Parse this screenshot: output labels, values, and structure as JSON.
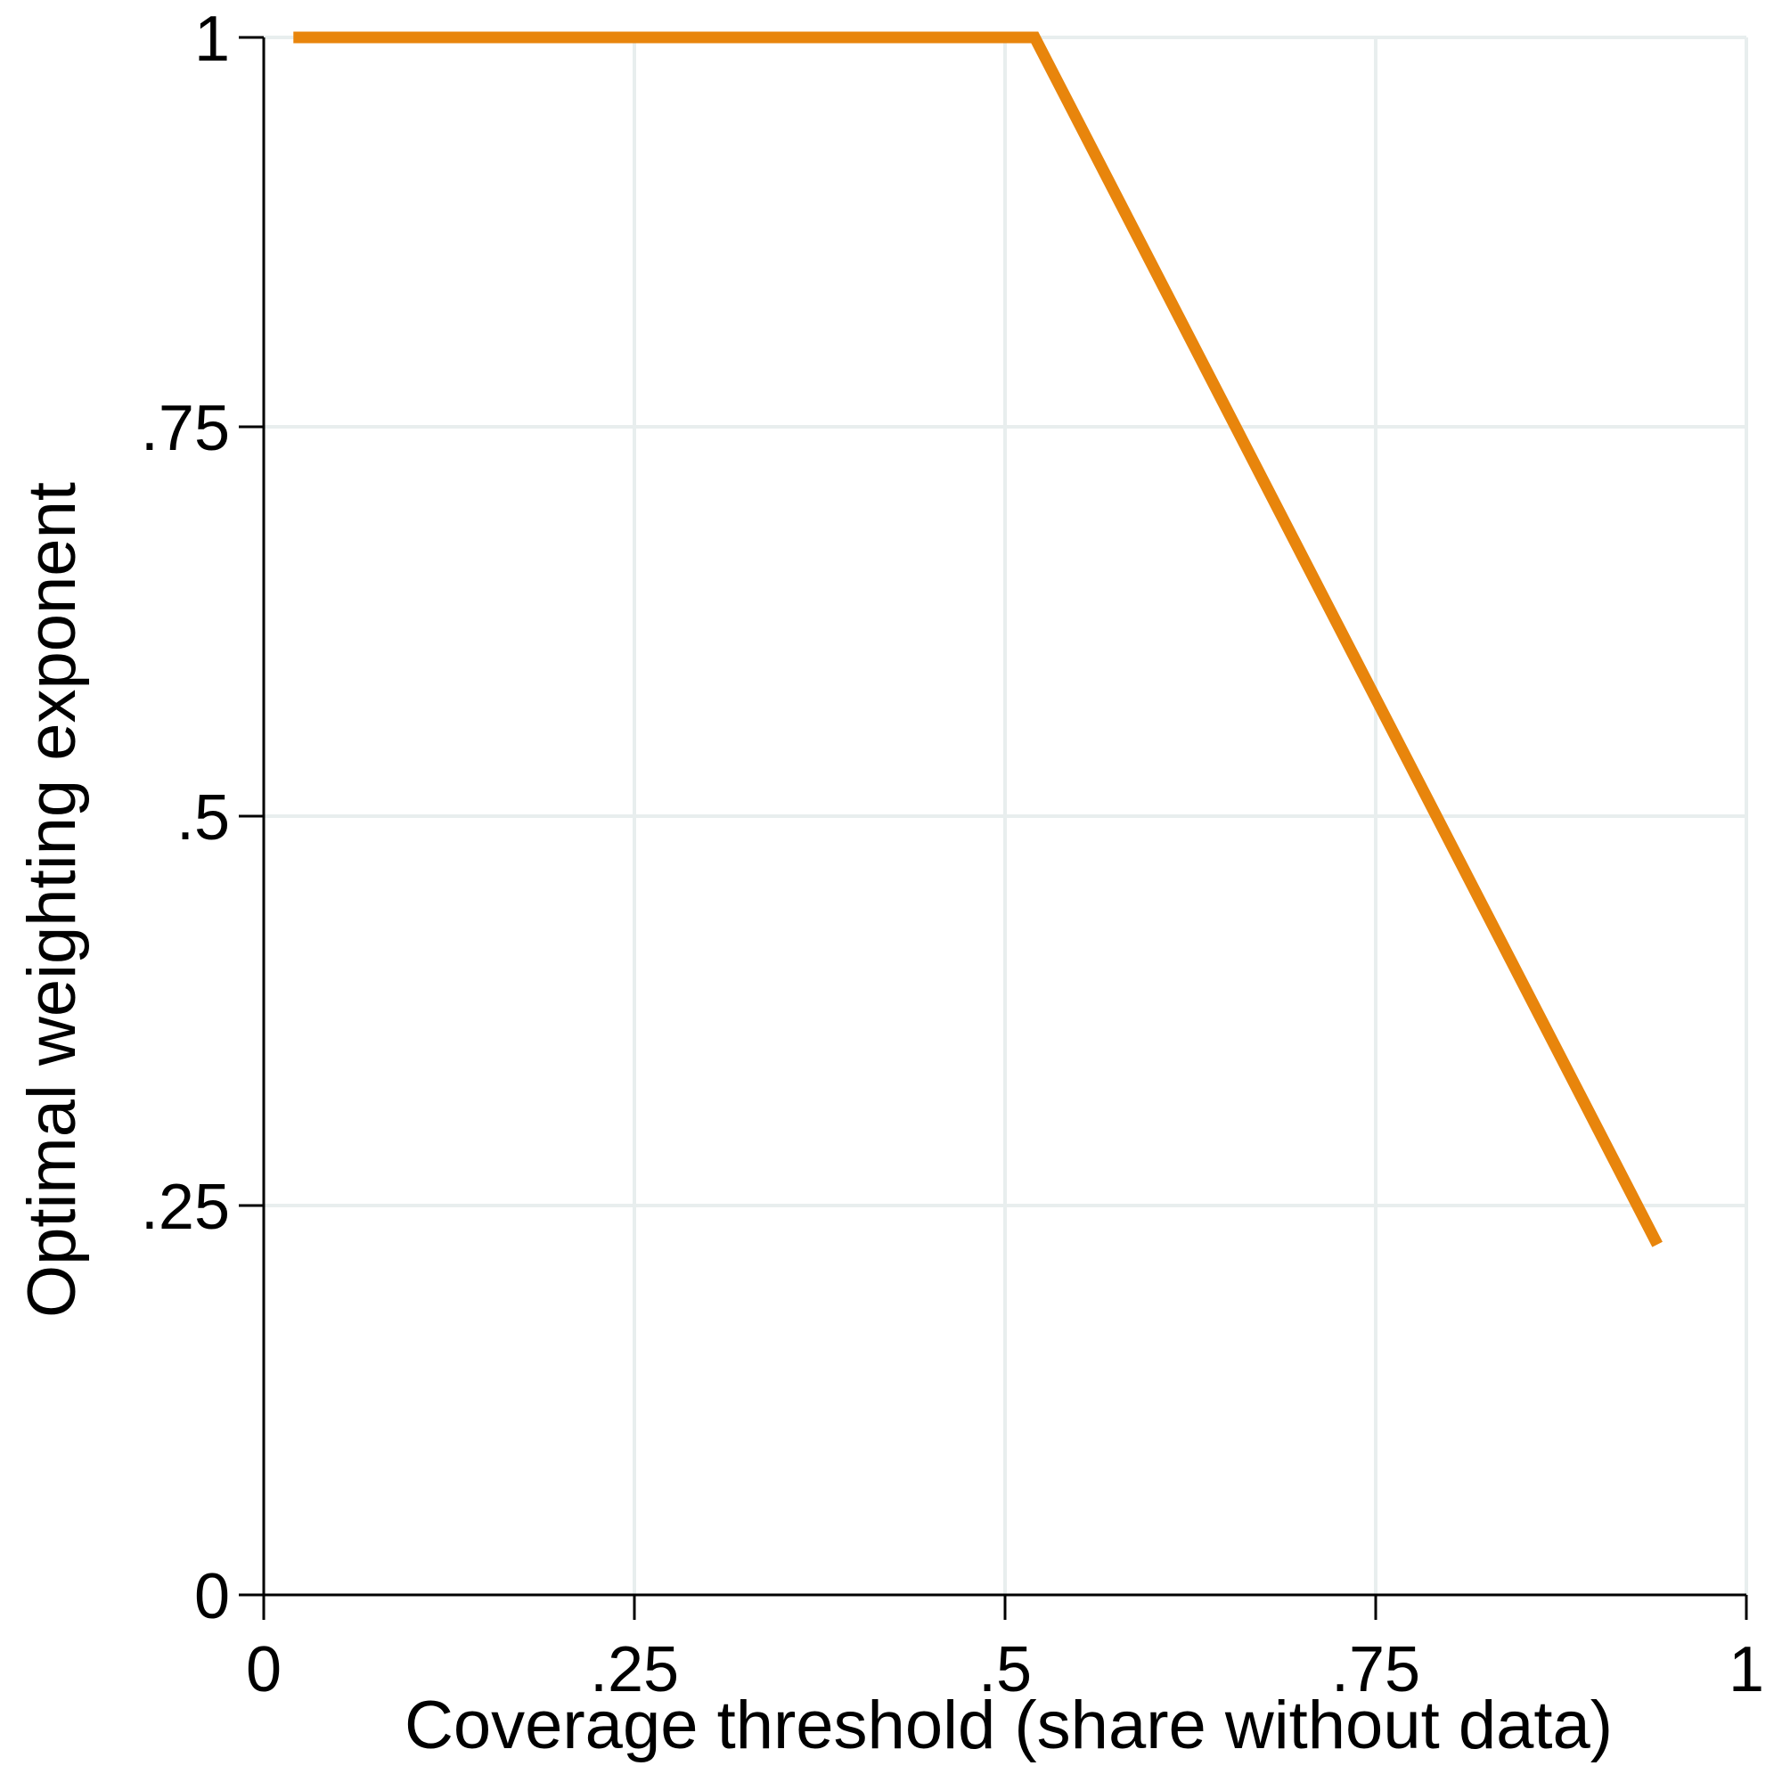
{
  "chart_data": {
    "type": "line",
    "title": "",
    "xlabel": "Coverage threshold (share without data)",
    "ylabel": "Optimal weighting exponent",
    "xlim": [
      0,
      1
    ],
    "ylim": [
      0,
      1
    ],
    "xticks": [
      0,
      0.25,
      0.5,
      0.75,
      1
    ],
    "xtick_labels": [
      "0",
      ".25",
      ".5",
      ".75",
      "1"
    ],
    "yticks": [
      0,
      0.25,
      0.5,
      0.75,
      1
    ],
    "ytick_labels": [
      "0",
      ".25",
      ".5",
      ".75",
      "1"
    ],
    "grid": true,
    "legend": "none",
    "series": [
      {
        "color": "#E8850C",
        "x": [
          0.02,
          0.52,
          0.94
        ],
        "y": [
          1.0,
          1.0,
          0.225
        ]
      }
    ]
  },
  "colors": {
    "line": "#E8850C",
    "grid": "#E8EEEE",
    "axis": "#000000"
  }
}
